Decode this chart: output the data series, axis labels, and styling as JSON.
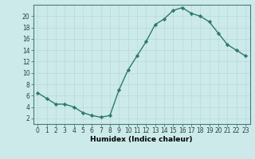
{
  "x": [
    0,
    1,
    2,
    3,
    4,
    5,
    6,
    7,
    8,
    9,
    10,
    11,
    12,
    13,
    14,
    15,
    16,
    17,
    18,
    19,
    20,
    21,
    22,
    23
  ],
  "y": [
    6.5,
    5.5,
    4.5,
    4.5,
    4.0,
    3.0,
    2.5,
    2.2,
    2.5,
    7.0,
    10.5,
    13.0,
    15.5,
    18.5,
    19.5,
    21.0,
    21.5,
    20.5,
    20.0,
    19.0,
    17.0,
    15.0,
    14.0,
    13.0
  ],
  "xlabel": "Humidex (Indice chaleur)",
  "xlim": [
    -0.5,
    23.5
  ],
  "ylim": [
    1,
    22
  ],
  "yticks": [
    2,
    4,
    6,
    8,
    10,
    12,
    14,
    16,
    18,
    20
  ],
  "xticks": [
    0,
    1,
    2,
    3,
    4,
    5,
    6,
    7,
    8,
    9,
    10,
    11,
    12,
    13,
    14,
    15,
    16,
    17,
    18,
    19,
    20,
    21,
    22,
    23
  ],
  "line_color": "#2d7a6e",
  "bg_color": "#cceaea",
  "grid_color": "#b8d8d8",
  "marker": "D",
  "marker_size": 2.2,
  "line_width": 1.0,
  "tick_fontsize": 5.5,
  "xlabel_fontsize": 6.5
}
